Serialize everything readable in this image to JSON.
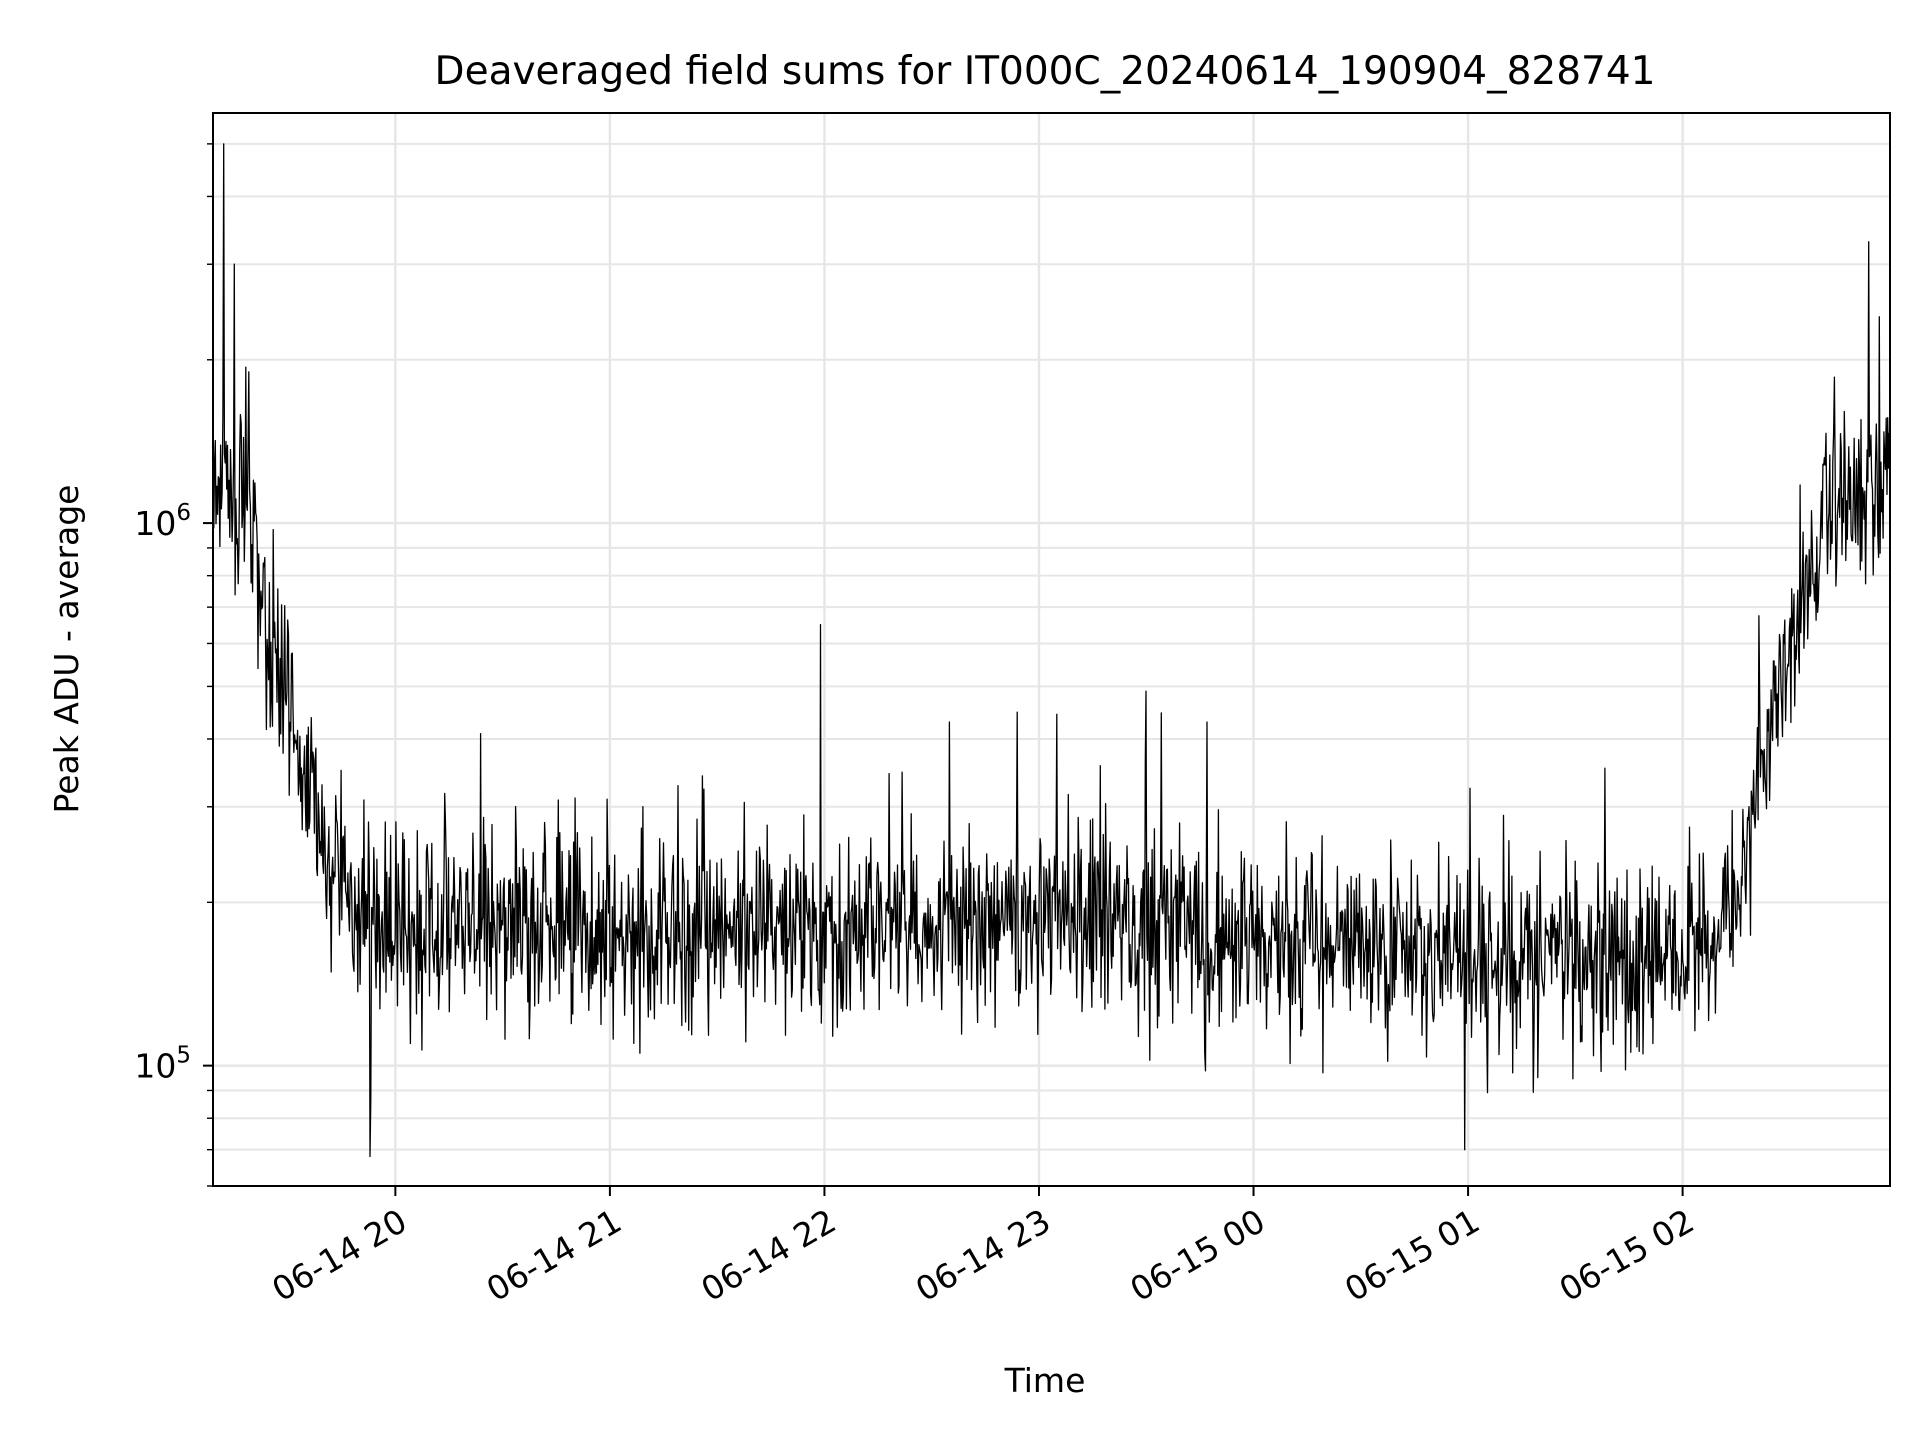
{
  "chart_data": {
    "type": "line",
    "title": "Deaveraged field sums for IT000C_20240614_190904_828741",
    "xlabel": "Time",
    "ylabel": "Peak ADU - average",
    "x_type": "datetime",
    "xlim": [
      "2024-06-14 19:09",
      "2024-06-15 02:58"
    ],
    "y_scale": "log",
    "ylim": [
      60000,
      5700000
    ],
    "grid": true,
    "x_ticks": [
      {
        "t": "2024-06-14 20:00",
        "label": "06-14 20"
      },
      {
        "t": "2024-06-14 21:00",
        "label": "06-14 21"
      },
      {
        "t": "2024-06-14 22:00",
        "label": "06-14 22"
      },
      {
        "t": "2024-06-14 23:00",
        "label": "06-14 23"
      },
      {
        "t": "2024-06-15 00:00",
        "label": "06-15 00"
      },
      {
        "t": "2024-06-15 01:00",
        "label": "06-15 01"
      },
      {
        "t": "2024-06-15 02:00",
        "label": "06-15 02"
      }
    ],
    "y_ticks": [
      {
        "value": 100000,
        "base": "10",
        "exp": "5"
      },
      {
        "value": 1000000,
        "base": "10",
        "exp": "6"
      }
    ],
    "series": [
      {
        "color": "#000000",
        "points": [
          [
            "2024-06-14 19:09",
            1100000
          ],
          [
            "2024-06-14 19:12",
            1300000
          ],
          [
            "2024-06-14 19:15",
            1200000
          ],
          [
            "2024-06-14 19:18",
            1050000
          ],
          [
            "2024-06-14 19:21",
            900000
          ],
          [
            "2024-06-14 19:24",
            640000
          ],
          [
            "2024-06-14 19:27",
            480000
          ],
          [
            "2024-06-14 19:30",
            420000
          ],
          [
            "2024-06-14 19:33",
            370000
          ],
          [
            "2024-06-14 19:36",
            310000
          ],
          [
            "2024-06-14 19:39",
            260000
          ],
          [
            "2024-06-14 19:42",
            230000
          ],
          [
            "2024-06-14 19:45",
            210000
          ],
          [
            "2024-06-14 19:50",
            190000
          ],
          [
            "2024-06-14 20:00",
            180000
          ],
          [
            "2024-06-14 20:30",
            185000
          ],
          [
            "2024-06-14 21:00",
            175000
          ],
          [
            "2024-06-14 22:00",
            180000
          ],
          [
            "2024-06-14 23:00",
            185000
          ],
          [
            "2024-06-15 00:00",
            172000
          ],
          [
            "2024-06-15 01:00",
            162000
          ],
          [
            "2024-06-15 01:50",
            155000
          ],
          [
            "2024-06-15 02:05",
            165000
          ],
          [
            "2024-06-15 02:15",
            200000
          ],
          [
            "2024-06-15 02:18",
            260000
          ],
          [
            "2024-06-15 02:21",
            320000
          ],
          [
            "2024-06-15 02:24",
            400000
          ],
          [
            "2024-06-15 02:27",
            480000
          ],
          [
            "2024-06-15 02:30",
            580000
          ],
          [
            "2024-06-15 02:33",
            700000
          ],
          [
            "2024-06-15 02:36",
            850000
          ],
          [
            "2024-06-15 02:40",
            1000000
          ],
          [
            "2024-06-15 02:45",
            1100000
          ],
          [
            "2024-06-15 02:50",
            1150000
          ],
          [
            "2024-06-15 02:58",
            1200000
          ]
        ],
        "spikes": [
          [
            "2024-06-14 19:12",
            5000000
          ],
          [
            "2024-06-14 19:15",
            3000000
          ],
          [
            "2024-06-14 19:19",
            1900000
          ],
          [
            "2024-06-14 19:53",
            68000
          ],
          [
            "2024-06-14 21:59",
            650000
          ],
          [
            "2024-06-14 22:35",
            430000
          ],
          [
            "2024-06-14 23:30",
            490000
          ],
          [
            "2024-06-14 23:47",
            430000
          ],
          [
            "2024-06-15 00:59",
            70000
          ],
          [
            "2024-06-15 02:52",
            3300000
          ],
          [
            "2024-06-15 02:55",
            2400000
          ]
        ]
      }
    ]
  }
}
